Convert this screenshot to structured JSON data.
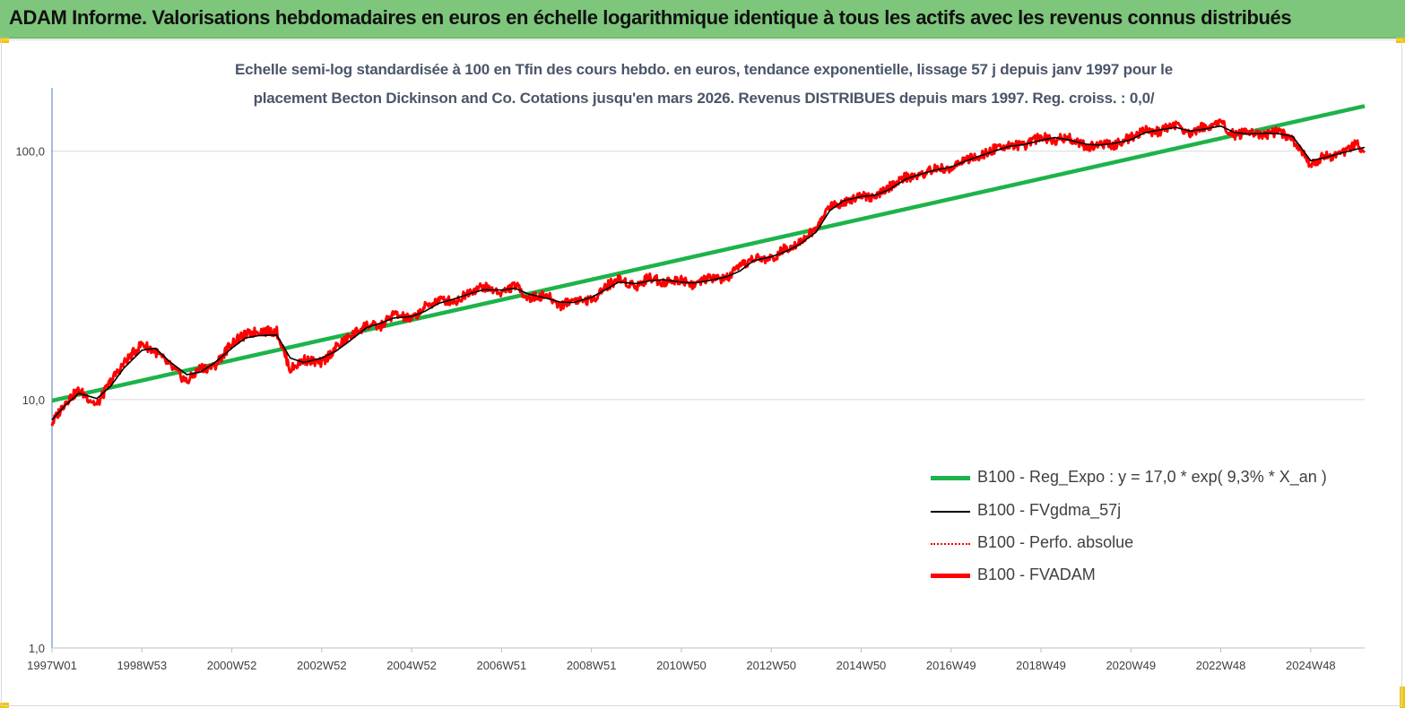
{
  "header": {
    "title": "ADAM Informe. Valorisations hebdomadaires en euros en échelle logarithmique identique à tous les actifs avec les revenus connus distribués"
  },
  "colors": {
    "banner": "#7dc67b",
    "regression": "#1db34a",
    "smoothed": "#000000",
    "absolute": "#ff0000",
    "fvadam": "#ff0000"
  },
  "chart_data": {
    "type": "line",
    "title_line1": "Echelle semi-log standardisée à 100 en Tfin des cours hebdo. en euros, tendance exponentielle, lissage 57 j depuis janv 1997 pour le",
    "title_line2": "placement Becton Dickinson and Co. Cotations jusqu'en mars 2026. Revenus DISTRIBUES depuis mars 1997. Reg. croiss. : 0,0/",
    "y_scale": "log",
    "ylim": [
      1,
      180
    ],
    "y_ticks": [
      {
        "value": 1,
        "label": "1,0"
      },
      {
        "value": 10,
        "label": "10,0"
      },
      {
        "value": 100,
        "label": "100,0"
      }
    ],
    "x_start_year": 1997.0,
    "x_end_year": 2026.2,
    "x_ticks": [
      {
        "year": 1997.0,
        "label": "1997W01"
      },
      {
        "year": 1999.0,
        "label": "1998W53"
      },
      {
        "year": 2001.0,
        "label": "2000W52"
      },
      {
        "year": 2003.0,
        "label": "2002W52"
      },
      {
        "year": 2005.0,
        "label": "2004W52"
      },
      {
        "year": 2007.0,
        "label": "2006W51"
      },
      {
        "year": 2009.0,
        "label": "2008W51"
      },
      {
        "year": 2011.0,
        "label": "2010W50"
      },
      {
        "year": 2013.0,
        "label": "2012W50"
      },
      {
        "year": 2015.0,
        "label": "2014W50"
      },
      {
        "year": 2017.0,
        "label": "2016W49"
      },
      {
        "year": 2019.0,
        "label": "2018W49"
      },
      {
        "year": 2021.0,
        "label": "2020W49"
      },
      {
        "year": 2023.0,
        "label": "2022W48"
      },
      {
        "year": 2025.0,
        "label": "2024W48"
      }
    ],
    "grid": "horizontal",
    "legend_position": "bottom-right",
    "series": [
      {
        "name": "B100 - Reg_Expo : y = 17,0 *  exp( 9,3% *  X_an )",
        "style": "regression",
        "x": [
          1997.0,
          2026.2
        ],
        "y": [
          9.9,
          152
        ]
      },
      {
        "name": "B100 - FVgdma_57j",
        "style": "smoothed",
        "x": [
          1997.0,
          1997.3,
          1997.6,
          1998.0,
          1998.3,
          1998.6,
          1999.0,
          1999.3,
          1999.6,
          2000.0,
          2000.3,
          2000.6,
          2001.0,
          2001.3,
          2001.6,
          2002.0,
          2002.3,
          2002.6,
          2003.0,
          2003.3,
          2003.6,
          2004.0,
          2004.3,
          2004.6,
          2005.0,
          2005.3,
          2005.6,
          2006.0,
          2006.3,
          2006.6,
          2007.0,
          2007.3,
          2007.6,
          2008.0,
          2008.3,
          2008.6,
          2009.0,
          2009.3,
          2009.6,
          2010.0,
          2010.3,
          2010.6,
          2011.0,
          2011.3,
          2011.6,
          2012.0,
          2012.3,
          2012.6,
          2013.0,
          2013.3,
          2013.6,
          2014.0,
          2014.3,
          2014.6,
          2015.0,
          2015.3,
          2015.6,
          2016.0,
          2016.3,
          2016.6,
          2017.0,
          2017.3,
          2017.6,
          2018.0,
          2018.3,
          2018.6,
          2019.0,
          2019.3,
          2019.6,
          2020.0,
          2020.3,
          2020.6,
          2021.0,
          2021.3,
          2021.6,
          2022.0,
          2022.3,
          2022.6,
          2023.0,
          2023.3,
          2023.6,
          2024.0,
          2024.3,
          2024.6,
          2025.0,
          2025.3,
          2025.6,
          2026.0,
          2026.2
        ],
        "y": [
          8.3,
          9.5,
          10.6,
          10.1,
          11.3,
          13.4,
          15.8,
          16.1,
          14.3,
          12.6,
          12.9,
          14.0,
          16.1,
          17.7,
          18.1,
          18.2,
          14.7,
          14.1,
          14.7,
          15.6,
          17.1,
          19.5,
          20.3,
          21.3,
          21.6,
          22.7,
          24.4,
          25.6,
          26.7,
          27.7,
          27.6,
          28.1,
          26.6,
          25.6,
          24.7,
          24.6,
          25.8,
          27.6,
          29.7,
          29.3,
          30.1,
          30.4,
          29.7,
          29.5,
          30.1,
          31.2,
          32.9,
          36.2,
          37.6,
          39.3,
          41.8,
          47.3,
          57.6,
          63.1,
          65.7,
          66.5,
          69.7,
          77.4,
          80.6,
          83.6,
          86.4,
          90.9,
          95.2,
          100.6,
          104.7,
          106.1,
          110.6,
          113.5,
          111.3,
          106.8,
          105.9,
          107.4,
          111.2,
          118.6,
          121.6,
          124.7,
          120.6,
          122.5,
          126.3,
          119.1,
          117.3,
          118.2,
          117.6,
          114.7,
          91.6,
          94.1,
          97.4,
          101.8,
          103.6
        ]
      },
      {
        "name": "B100 - Perfo. absolue",
        "style": "dotted",
        "x": [
          1997.0,
          1997.3,
          1997.6,
          1998.0,
          1998.3,
          1998.6,
          1999.0,
          1999.3,
          1999.6,
          2000.0,
          2000.3,
          2000.6,
          2001.0,
          2001.3,
          2001.6,
          2002.0,
          2002.3,
          2002.6,
          2003.0,
          2003.3,
          2003.6,
          2004.0,
          2004.3,
          2004.6,
          2005.0,
          2005.3,
          2005.6,
          2006.0,
          2006.3,
          2006.6,
          2007.0,
          2007.3,
          2007.6,
          2008.0,
          2008.3,
          2008.6,
          2009.0,
          2009.3,
          2009.6,
          2010.0,
          2010.3,
          2010.6,
          2011.0,
          2011.3,
          2011.6,
          2012.0,
          2012.3,
          2012.6,
          2013.0,
          2013.3,
          2013.6,
          2014.0,
          2014.3,
          2014.6,
          2015.0,
          2015.3,
          2015.6,
          2016.0,
          2016.3,
          2016.6,
          2017.0,
          2017.3,
          2017.6,
          2018.0,
          2018.3,
          2018.6,
          2019.0,
          2019.3,
          2019.6,
          2020.0,
          2020.3,
          2020.6,
          2021.0,
          2021.3,
          2021.6,
          2022.0,
          2022.3,
          2022.6,
          2023.0,
          2023.3,
          2023.6,
          2024.0,
          2024.3,
          2024.6,
          2025.0,
          2025.3,
          2025.6,
          2026.0,
          2026.2
        ],
        "y": [
          8.0,
          9.8,
          10.9,
          9.5,
          11.8,
          14.0,
          16.8,
          15.6,
          13.8,
          11.8,
          13.4,
          13.5,
          16.9,
          18.2,
          18.9,
          18.8,
          13.2,
          14.5,
          14.0,
          16.1,
          17.8,
          20.0,
          19.6,
          22.1,
          21.0,
          23.6,
          25.2,
          24.9,
          27.4,
          28.5,
          26.9,
          28.9,
          25.6,
          26.3,
          23.9,
          25.3,
          25.0,
          28.4,
          30.6,
          28.6,
          31.2,
          29.6,
          30.5,
          28.9,
          30.8,
          30.6,
          34.1,
          37.0,
          36.8,
          40.5,
          42.9,
          48.6,
          60.3,
          62.0,
          67.2,
          64.6,
          71.2,
          78.8,
          79.3,
          85.1,
          84.8,
          92.7,
          93.8,
          103.1,
          106.8,
          104.2,
          115.3,
          110.4,
          114.6,
          104.1,
          107.2,
          105.6,
          113.7,
          120.9,
          119.8,
          128.2,
          118.0,
          124.9,
          130.4,
          116.1,
          118.9,
          116.0,
          120.5,
          111.0,
          88.5,
          95.8,
          95.3,
          107.0,
          100.5
        ]
      },
      {
        "name": "B100 - FVADAM",
        "style": "solid-red",
        "x": [
          1997.0,
          1997.3,
          1997.6,
          1998.0,
          1998.3,
          1998.6,
          1999.0,
          1999.3,
          1999.6,
          2000.0,
          2000.3,
          2000.6,
          2001.0,
          2001.3,
          2001.6,
          2002.0,
          2002.3,
          2002.6,
          2003.0,
          2003.3,
          2003.6,
          2004.0,
          2004.3,
          2004.6,
          2005.0,
          2005.3,
          2005.6,
          2006.0,
          2006.3,
          2006.6,
          2007.0,
          2007.3,
          2007.6,
          2008.0,
          2008.3,
          2008.6,
          2009.0,
          2009.3,
          2009.6,
          2010.0,
          2010.3,
          2010.6,
          2011.0,
          2011.3,
          2011.6,
          2012.0,
          2012.3,
          2012.6,
          2013.0,
          2013.3,
          2013.6,
          2014.0,
          2014.3,
          2014.6,
          2015.0,
          2015.3,
          2015.6,
          2016.0,
          2016.3,
          2016.6,
          2017.0,
          2017.3,
          2017.6,
          2018.0,
          2018.3,
          2018.6,
          2019.0,
          2019.3,
          2019.6,
          2020.0,
          2020.3,
          2020.6,
          2021.0,
          2021.3,
          2021.6,
          2022.0,
          2022.3,
          2022.6,
          2023.0,
          2023.3,
          2023.6,
          2024.0,
          2024.3,
          2024.6,
          2025.0,
          2025.3,
          2025.6,
          2026.0,
          2026.2
        ],
        "y": [
          8.0,
          9.8,
          10.9,
          9.5,
          11.8,
          14.0,
          16.8,
          15.6,
          13.8,
          11.8,
          13.4,
          13.5,
          16.9,
          18.2,
          18.9,
          18.8,
          13.2,
          14.5,
          14.0,
          16.1,
          17.8,
          20.0,
          19.6,
          22.1,
          21.0,
          23.6,
          25.2,
          24.9,
          27.4,
          28.5,
          26.9,
          28.9,
          25.6,
          26.3,
          23.9,
          25.3,
          25.0,
          28.4,
          30.6,
          28.6,
          31.2,
          29.6,
          30.5,
          28.9,
          30.8,
          30.6,
          34.1,
          37.0,
          36.8,
          40.5,
          42.9,
          48.6,
          60.3,
          62.0,
          67.2,
          64.6,
          71.2,
          78.8,
          79.3,
          85.1,
          84.8,
          92.7,
          93.8,
          103.1,
          106.8,
          104.2,
          115.3,
          110.4,
          114.6,
          104.1,
          107.2,
          105.6,
          113.7,
          120.9,
          119.8,
          128.2,
          118.0,
          124.9,
          130.4,
          116.1,
          118.9,
          116.0,
          120.5,
          111.0,
          88.5,
          95.8,
          95.3,
          107.0,
          100.5
        ]
      }
    ]
  }
}
